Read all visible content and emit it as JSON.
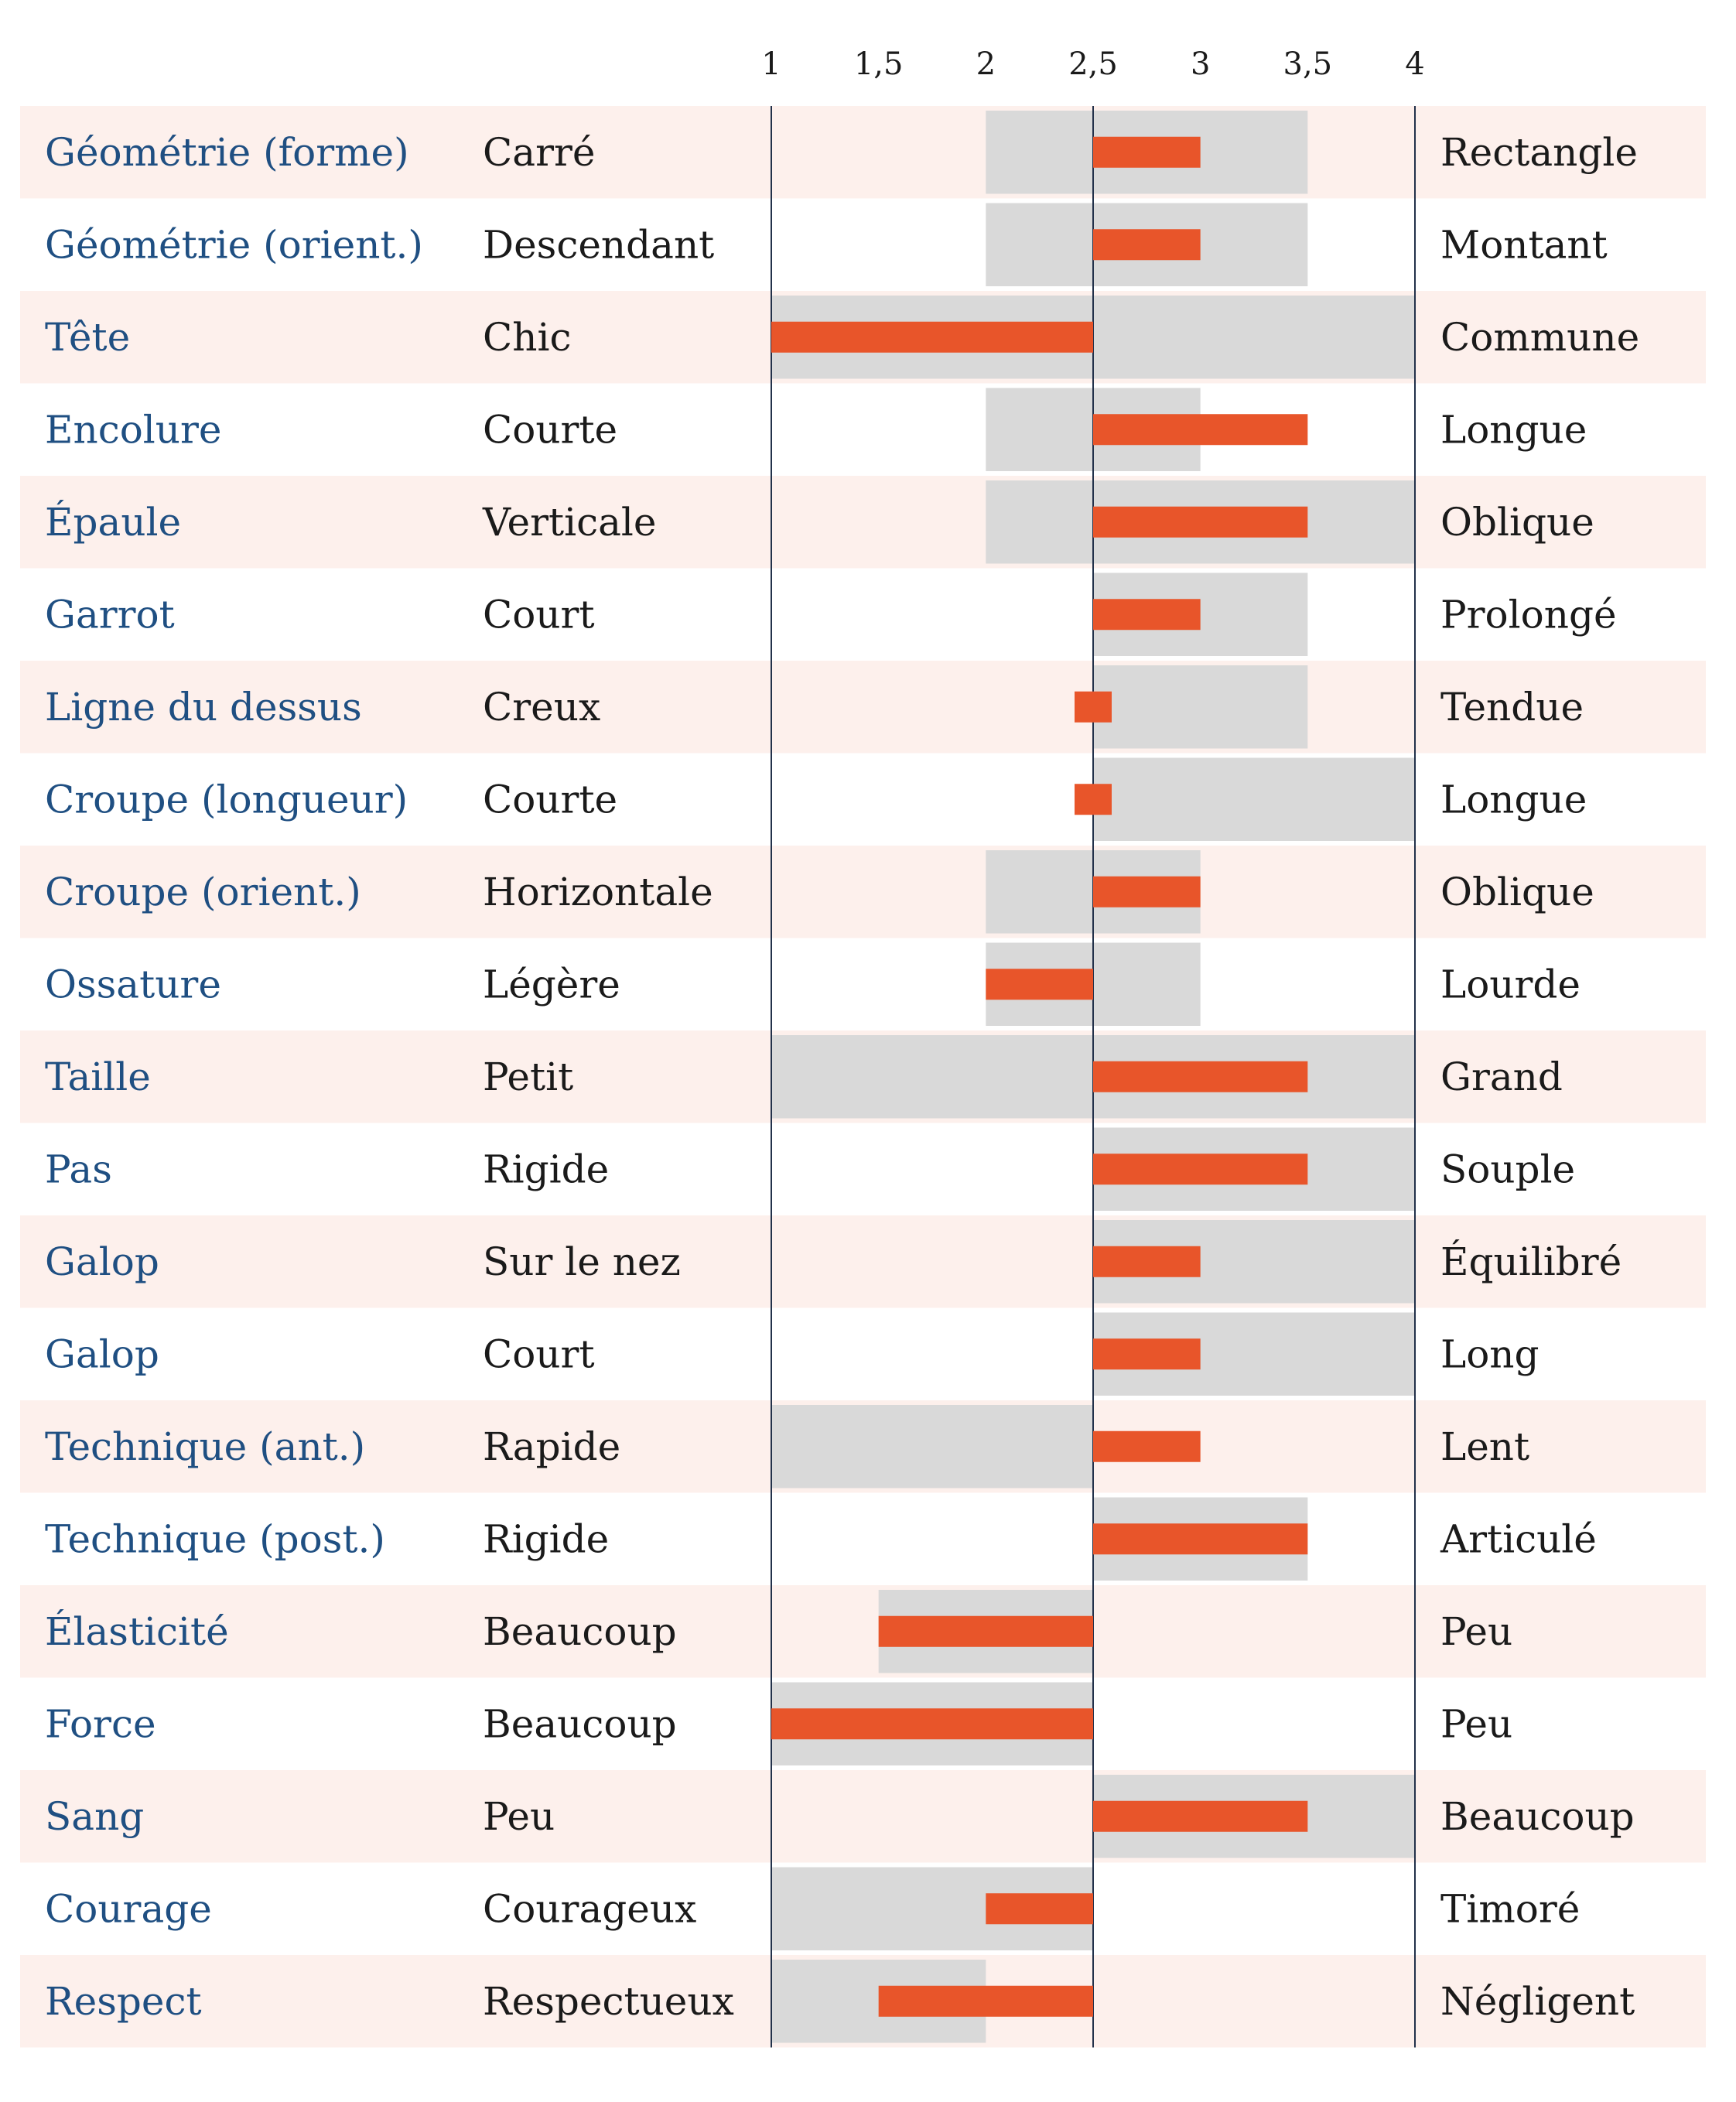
{
  "chart_data": {
    "type": "bar",
    "xlim": [
      1,
      4
    ],
    "ticks": [
      {
        "value": 1,
        "label": "1"
      },
      {
        "value": 1.5,
        "label": "1,5"
      },
      {
        "value": 2,
        "label": "2"
      },
      {
        "value": 2.5,
        "label": "2,5"
      },
      {
        "value": 3,
        "label": "3"
      },
      {
        "value": 3.5,
        "label": "3,5"
      },
      {
        "value": 4,
        "label": "4"
      }
    ],
    "reference": 2.5,
    "colors": {
      "label": "#1f4f82",
      "bar": "#e8552a",
      "range": "#d9d9d9",
      "stripe": "#fdf0ec",
      "axis": "#22314a"
    },
    "rows": [
      {
        "trait": "Géométrie (forme)",
        "low": "Carré",
        "high": "Rectangle",
        "range": [
          2,
          3.5
        ],
        "value": 3
      },
      {
        "trait": "Géométrie (orient.)",
        "low": "Descendant",
        "high": "Montant",
        "range": [
          2,
          3.5
        ],
        "value": 3
      },
      {
        "trait": "Tête",
        "low": "Chic",
        "high": "Commune",
        "range": [
          1,
          4
        ],
        "value": 1
      },
      {
        "trait": "Encolure",
        "low": "Courte",
        "high": "Longue",
        "range": [
          2,
          3
        ],
        "value": 3.5
      },
      {
        "trait": "Épaule",
        "low": "Verticale",
        "high": "Oblique",
        "range": [
          2,
          4
        ],
        "value": 3.5
      },
      {
        "trait": "Garrot",
        "low": "Court",
        "high": "Prolongé",
        "range": [
          2.5,
          3.5
        ],
        "value": 3
      },
      {
        "trait": "Ligne du dessus",
        "low": "Creux",
        "high": "Tendue",
        "range": [
          2.5,
          3.5
        ],
        "value": 2.5
      },
      {
        "trait": "Croupe (longueur)",
        "low": "Courte",
        "high": "Longue",
        "range": [
          2.5,
          4
        ],
        "value": 2.5
      },
      {
        "trait": "Croupe (orient.)",
        "low": "Horizontale",
        "high": "Oblique",
        "range": [
          2,
          3
        ],
        "value": 3
      },
      {
        "trait": "Ossature",
        "low": "Légère",
        "high": "Lourde",
        "range": [
          2,
          3
        ],
        "value": 2
      },
      {
        "trait": "Taille",
        "low": "Petit",
        "high": "Grand",
        "range": [
          1,
          4
        ],
        "value": 3.5
      },
      {
        "trait": "Pas",
        "low": "Rigide",
        "high": "Souple",
        "range": [
          2.5,
          4
        ],
        "value": 3.5
      },
      {
        "trait": "Galop",
        "low": "Sur le nez",
        "high": "Équilibré",
        "range": [
          2.5,
          4
        ],
        "value": 3
      },
      {
        "trait": "Galop",
        "low": "Court",
        "high": "Long",
        "range": [
          2.5,
          4
        ],
        "value": 3
      },
      {
        "trait": "Technique (ant.)",
        "low": "Rapide",
        "high": "Lent",
        "range": [
          1,
          2.5
        ],
        "value": 3
      },
      {
        "trait": "Technique (post.)",
        "low": "Rigide",
        "high": "Articulé",
        "range": [
          2.5,
          3.5
        ],
        "value": 3.5
      },
      {
        "trait": "Élasticité",
        "low": "Beaucoup",
        "high": "Peu",
        "range": [
          1.5,
          2.5
        ],
        "value": 1.5
      },
      {
        "trait": "Force",
        "low": "Beaucoup",
        "high": "Peu",
        "range": [
          1,
          2.5
        ],
        "value": 1
      },
      {
        "trait": "Sang",
        "low": "Peu",
        "high": "Beaucoup",
        "range": [
          2.5,
          4
        ],
        "value": 3.5
      },
      {
        "trait": "Courage",
        "low": "Courageux",
        "high": "Timoré",
        "range": [
          1,
          2.5
        ],
        "value": 2
      },
      {
        "trait": "Respect",
        "low": "Respectueux",
        "high": "Négligent",
        "range": [
          1,
          2
        ],
        "value": 1.5
      }
    ]
  }
}
